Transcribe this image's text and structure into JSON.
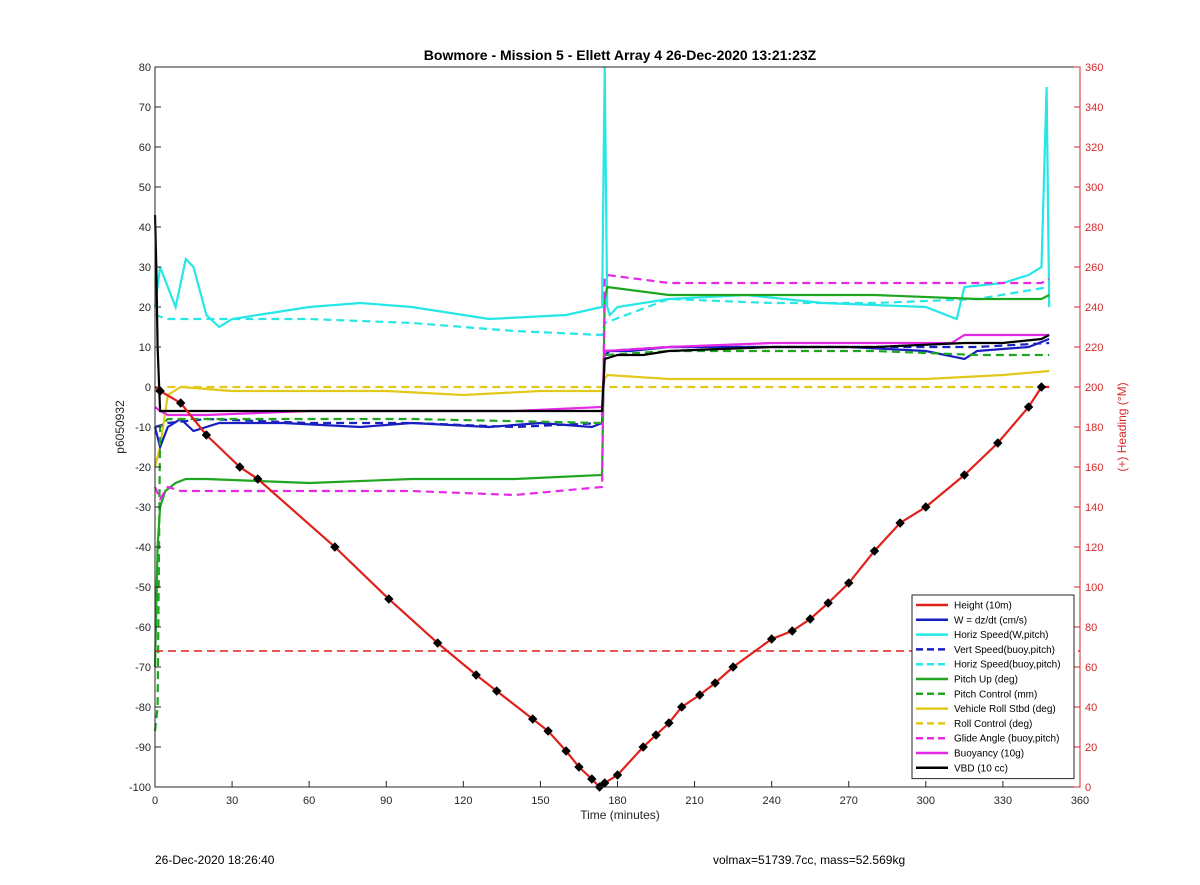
{
  "footer": {
    "left": "26-Dec-2020 18:26:40",
    "right": "volmax=51739.7cc, mass=52.569kg"
  },
  "chart_data": {
    "type": "line",
    "title": "Bowmore - Mission 5 - Ellett Array 4 26-Dec-2020 13:21:23Z",
    "xlabel": "Time (minutes)",
    "ylabel": "p6050932",
    "y2label": "(+) Heading (°M)",
    "xlim": [
      0,
      360
    ],
    "ylim": [
      -100,
      80
    ],
    "y2lim": [
      0,
      360
    ],
    "xticks": [
      0,
      30,
      60,
      90,
      120,
      150,
      180,
      210,
      240,
      270,
      300,
      330,
      360
    ],
    "yticks": [
      -100,
      -90,
      -80,
      -70,
      -60,
      -50,
      -40,
      -30,
      -20,
      -10,
      0,
      10,
      20,
      30,
      40,
      50,
      60,
      70,
      80
    ],
    "y2ticks": [
      0,
      20,
      40,
      60,
      80,
      100,
      120,
      140,
      160,
      180,
      200,
      220,
      240,
      260,
      280,
      300,
      320,
      340,
      360
    ],
    "grid": false,
    "legend_position": "bottom-right",
    "colors": {
      "red": "#e0211b",
      "blue": "#1a1fbf",
      "cyan": "#26e6e6",
      "green": "#1fa51f",
      "yellow": "#e3c81a",
      "magenta": "#e629e6",
      "black": "#000000"
    },
    "series": [
      {
        "name": "Height (10m)",
        "color": "#e0211b",
        "style": "solid",
        "axis": "left",
        "x": [
          0,
          2,
          10,
          20,
          33,
          40,
          70,
          91,
          110,
          125,
          133,
          147,
          153,
          160,
          165,
          170,
          173,
          175,
          180,
          190,
          195,
          200,
          205,
          212,
          218,
          225,
          240,
          248,
          255,
          262,
          270,
          280,
          290,
          300,
          315,
          328,
          340,
          345,
          348
        ],
        "y": [
          0,
          -1,
          -4,
          -12,
          -20,
          -23,
          -40,
          -53,
          -64,
          -72,
          -76,
          -83,
          -86,
          -91,
          -95,
          -98,
          -100,
          -99,
          -97,
          -90,
          -87,
          -84,
          -80,
          -77,
          -74,
          -70,
          -63,
          -61,
          -58,
          -54,
          -49,
          -41,
          -34,
          -30,
          -22,
          -14,
          -5,
          0,
          0
        ]
      },
      {
        "name": "W = dz/dt (cm/s)",
        "color": "#1a1fbf",
        "style": "solid",
        "axis": "left",
        "x": [
          0,
          2,
          5,
          10,
          15,
          25,
          50,
          80,
          100,
          130,
          150,
          170,
          174,
          175,
          177,
          185,
          200,
          240,
          270,
          300,
          315,
          320,
          340,
          348
        ],
        "y": [
          -10,
          -15,
          -10,
          -8,
          -11,
          -9,
          -9,
          -10,
          -9,
          -10,
          -9,
          -10,
          -9,
          8,
          9,
          9,
          10,
          10,
          10,
          9,
          7,
          9,
          10,
          12
        ]
      },
      {
        "name": "Horiz Speed(W,pitch)",
        "color": "#26e6e6",
        "style": "solid",
        "axis": "left",
        "x": [
          0,
          2,
          5,
          8,
          12,
          15,
          20,
          25,
          30,
          40,
          60,
          80,
          100,
          130,
          160,
          174,
          175,
          176,
          177,
          180,
          200,
          230,
          260,
          300,
          312,
          315,
          330,
          340,
          345,
          347,
          348
        ],
        "y": [
          20,
          30,
          25,
          20,
          32,
          30,
          18,
          15,
          17,
          18,
          20,
          21,
          20,
          17,
          18,
          20,
          80,
          20,
          18,
          20,
          22,
          23,
          21,
          20,
          17,
          25,
          26,
          28,
          30,
          75,
          20
        ]
      },
      {
        "name": "Vert Speed(buoy,pitch)",
        "color": "#1a1fbf",
        "style": "dashed",
        "axis": "left",
        "x": [
          0,
          5,
          20,
          60,
          100,
          140,
          174,
          175,
          200,
          240,
          280,
          320,
          348
        ],
        "y": [
          -10,
          -9,
          -8,
          -9,
          -9,
          -10,
          -9,
          9,
          10,
          10,
          10,
          10,
          11
        ]
      },
      {
        "name": "Horiz Speed(buoy,pitch)",
        "color": "#26e6e6",
        "style": "dashed",
        "axis": "left",
        "x": [
          0,
          5,
          20,
          60,
          100,
          140,
          174,
          175,
          200,
          240,
          280,
          320,
          348
        ],
        "y": [
          18,
          17,
          17,
          17,
          16,
          14,
          13,
          16,
          22,
          21,
          21,
          22,
          25
        ]
      },
      {
        "name": "Pitch Up (deg)",
        "color": "#1fa51f",
        "style": "solid",
        "axis": "left",
        "x": [
          0,
          1,
          2,
          4,
          8,
          12,
          20,
          60,
          100,
          140,
          174,
          175,
          176,
          200,
          240,
          280,
          320,
          345,
          348
        ],
        "y": [
          -70,
          -40,
          -30,
          -26,
          -24,
          -23,
          -23,
          -24,
          -23,
          -23,
          -22,
          22,
          25,
          23,
          23,
          23,
          22,
          22,
          23
        ]
      },
      {
        "name": "Pitch Control (mm)",
        "color": "#1fa51f",
        "style": "dashed",
        "axis": "left",
        "x": [
          0,
          1,
          2,
          5,
          10,
          40,
          100,
          174,
          175,
          200,
          240,
          280,
          320,
          348
        ],
        "y": [
          -86,
          -80,
          -10,
          -8,
          -8,
          -8,
          -8,
          -9,
          8,
          9,
          9,
          9,
          8,
          8
        ]
      },
      {
        "name": "Vehicle Roll Stbd (deg)",
        "color": "#e3c81a",
        "style": "solid",
        "axis": "left",
        "x": [
          0,
          2,
          5,
          10,
          30,
          60,
          90,
          120,
          150,
          174,
          175,
          176,
          200,
          230,
          260,
          300,
          330,
          348
        ],
        "y": [
          -20,
          -15,
          -2,
          0,
          -1,
          -1,
          -1,
          -2,
          -1,
          -1,
          2,
          3,
          2,
          2,
          2,
          2,
          3,
          4
        ]
      },
      {
        "name": "Roll Control (deg)",
        "color": "#e3c81a",
        "style": "dashed",
        "axis": "left",
        "x": [
          0,
          5,
          30,
          60,
          100,
          140,
          174,
          175,
          200,
          240,
          280,
          320,
          348
        ],
        "y": [
          -1,
          0,
          0,
          0,
          0,
          0,
          0,
          0,
          0,
          0,
          0,
          0,
          0
        ]
      },
      {
        "name": "Glide Angle (buoy,pitch)",
        "color": "#e629e6",
        "style": "dashed",
        "axis": "left",
        "x": [
          0,
          2,
          5,
          10,
          20,
          60,
          100,
          140,
          174,
          175,
          176,
          200,
          240,
          280,
          320,
          345,
          348
        ],
        "y": [
          -25,
          -28,
          -25,
          -26,
          -26,
          -26,
          -26,
          -27,
          -25,
          27,
          28,
          26,
          26,
          26,
          26,
          26,
          27
        ]
      },
      {
        "name": "Buoyancy (10g)",
        "color": "#e629e6",
        "style": "solid",
        "axis": "left",
        "x": [
          0,
          2,
          5,
          20,
          60,
          100,
          140,
          174,
          175,
          200,
          240,
          280,
          310,
          315,
          348
        ],
        "y": [
          -5,
          -6,
          -7,
          -7,
          -6,
          -6,
          -6,
          -5,
          9,
          10,
          11,
          11,
          11,
          13,
          13
        ]
      },
      {
        "name": "VBD (10 cc)",
        "color": "#000000",
        "style": "solid",
        "axis": "left",
        "x": [
          0,
          0.5,
          1,
          2,
          5,
          20,
          60,
          100,
          140,
          174,
          175,
          180,
          190,
          200,
          240,
          280,
          315,
          330,
          345,
          348
        ],
        "y": [
          43,
          30,
          10,
          -6,
          -6,
          -6,
          -6,
          -6,
          -6,
          -6,
          7,
          8,
          8,
          9,
          10,
          10,
          11,
          11,
          12,
          13
        ]
      }
    ],
    "heading": {
      "name": "(+) Heading (°M)",
      "color": "#e0211b",
      "axis": "right",
      "mean": 68
    },
    "markers": {
      "color": "#000000",
      "on": "Height (10m)"
    }
  }
}
